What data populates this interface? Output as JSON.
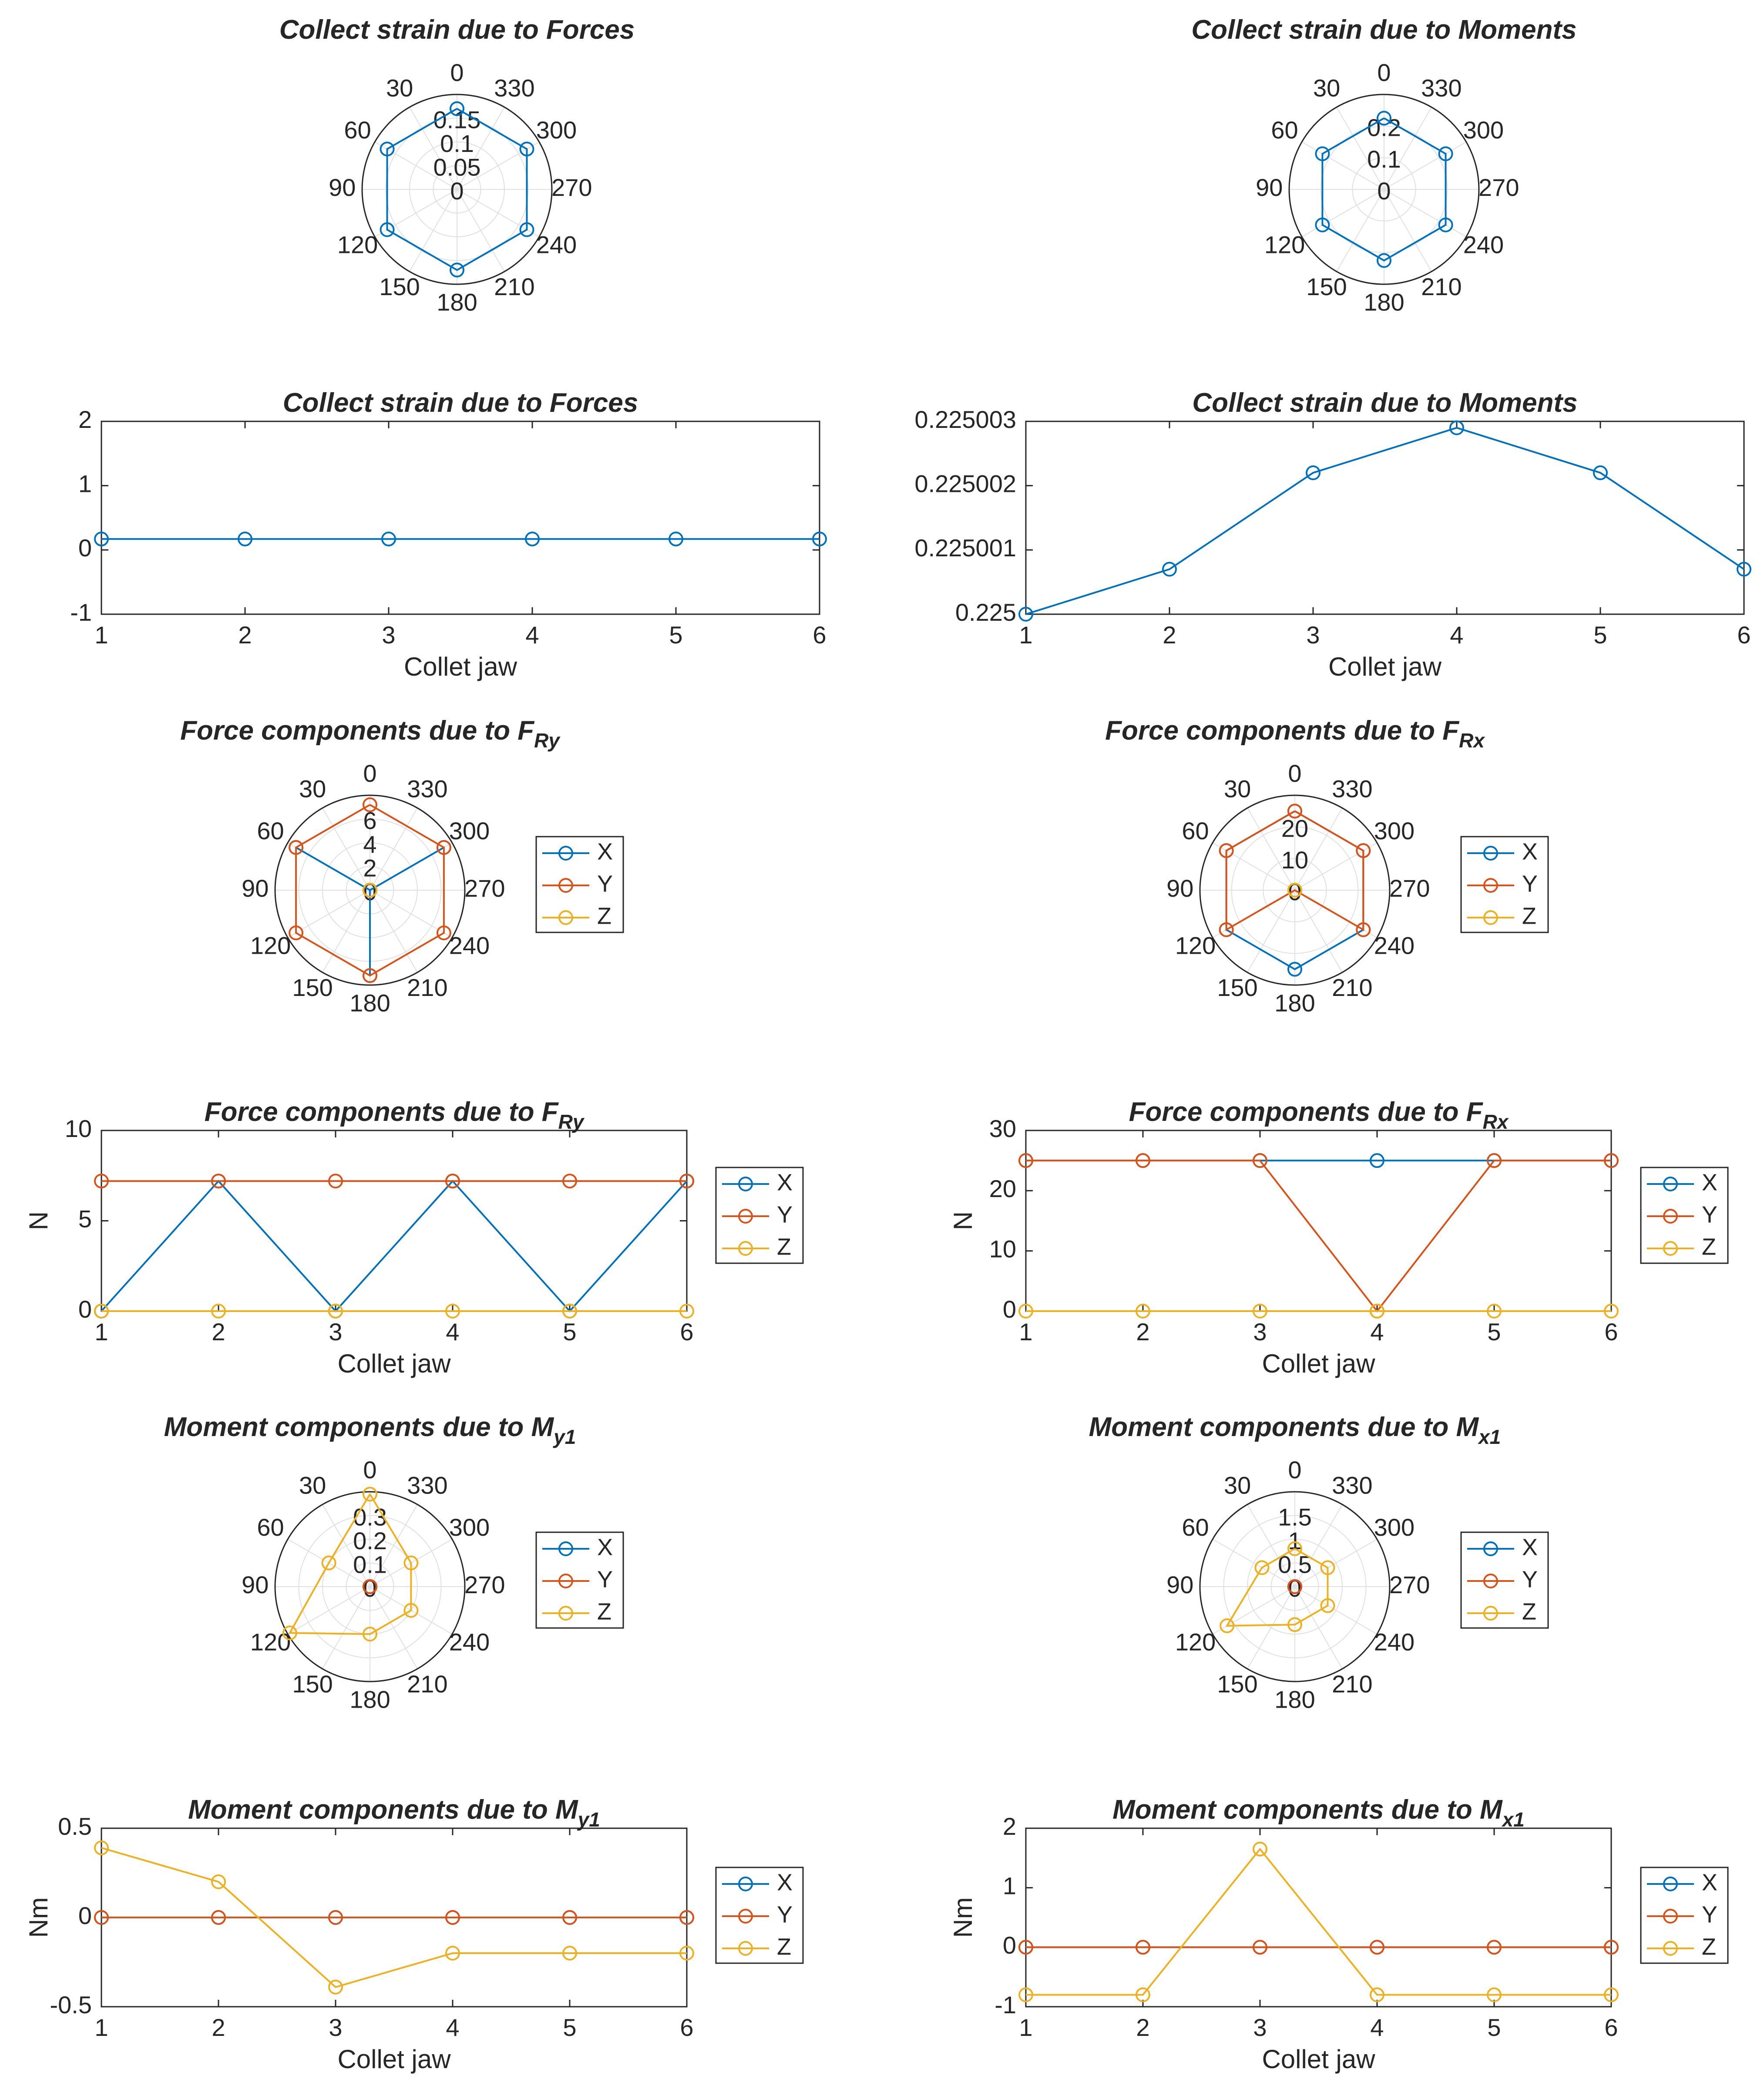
{
  "colors": {
    "X": "#0072BD",
    "Y": "#D95319",
    "Z": "#EDB120",
    "axis": "#262626",
    "grid": "#e0e0e0"
  },
  "legend_labels": [
    "X",
    "Y",
    "Z"
  ],
  "chart_data": [
    {
      "id": "strain-forces-polar",
      "type": "polar-line",
      "title": "Collect strain due to Forces",
      "theta": [
        0,
        60,
        120,
        180,
        240,
        300
      ],
      "rlim": [
        0,
        0.2
      ],
      "rticks": [
        "0",
        "0.05",
        "0.1",
        "0.15"
      ],
      "theta_ticks": [
        "0",
        "30",
        "60",
        "90",
        "120",
        "150",
        "180",
        "210",
        "240",
        "270",
        "300",
        "330"
      ],
      "series": [
        {
          "color": "X",
          "values": [
            0.17,
            0.17,
            0.17,
            0.17,
            0.17,
            0.17
          ]
        }
      ],
      "legend": false
    },
    {
      "id": "strain-moments-polar",
      "type": "polar-line",
      "title": "Collect strain due to Moments",
      "theta": [
        0,
        60,
        120,
        180,
        240,
        300
      ],
      "rlim": [
        0,
        0.3
      ],
      "rticks": [
        "0",
        "0.1",
        "0.2"
      ],
      "theta_ticks": [
        "0",
        "30",
        "60",
        "90",
        "120",
        "150",
        "180",
        "210",
        "240",
        "270",
        "300",
        "330"
      ],
      "series": [
        {
          "color": "X",
          "values": [
            0.225,
            0.225,
            0.225,
            0.225,
            0.225,
            0.225
          ]
        }
      ],
      "legend": false
    },
    {
      "id": "strain-forces-line",
      "type": "line",
      "title": "Collect strain due to Forces",
      "xlabel": "Collet jaw",
      "ylabel": "",
      "x": [
        1,
        2,
        3,
        4,
        5,
        6
      ],
      "xlim": [
        1,
        6
      ],
      "ylim": [
        -1,
        2
      ],
      "xticks": [
        "1",
        "2",
        "3",
        "4",
        "5",
        "6"
      ],
      "yticks": [
        "-1",
        "0",
        "1",
        "2"
      ],
      "series": [
        {
          "color": "X",
          "values": [
            0.17,
            0.17,
            0.17,
            0.17,
            0.17,
            0.17
          ]
        }
      ],
      "legend": false
    },
    {
      "id": "strain-moments-line",
      "type": "line",
      "title": "Collect strain due to Moments",
      "xlabel": "Collet jaw",
      "ylabel": "",
      "x": [
        1,
        2,
        3,
        4,
        5,
        6
      ],
      "xlim": [
        1,
        6
      ],
      "ylim": [
        0.225,
        0.225003
      ],
      "xticks": [
        "1",
        "2",
        "3",
        "4",
        "5",
        "6"
      ],
      "yticks": [
        "0.225",
        "0.225001",
        "0.225002",
        "0.225003"
      ],
      "series": [
        {
          "color": "X",
          "values": [
            0.225,
            0.2250007,
            0.2250022,
            0.2250029,
            0.2250022,
            0.2250007
          ]
        }
      ],
      "legend": false
    },
    {
      "id": "force-fry-polar",
      "type": "polar-line",
      "title": "Force components due to F",
      "title_sub": "Ry",
      "theta": [
        0,
        60,
        120,
        180,
        240,
        300
      ],
      "rlim": [
        0,
        8
      ],
      "rticks": [
        "0",
        "2",
        "4",
        "6"
      ],
      "theta_ticks": [
        "0",
        "30",
        "60",
        "90",
        "120",
        "150",
        "180",
        "210",
        "240",
        "270",
        "300",
        "330"
      ],
      "series": [
        {
          "name": "X",
          "color": "X",
          "values": [
            0,
            7.2,
            0,
            7.2,
            0,
            7.2
          ]
        },
        {
          "name": "Y",
          "color": "Y",
          "values": [
            7.2,
            7.2,
            7.2,
            7.2,
            7.2,
            7.2
          ]
        },
        {
          "name": "Z",
          "color": "Z",
          "values": [
            0,
            0,
            0,
            0,
            0,
            0
          ]
        }
      ],
      "legend": true
    },
    {
      "id": "force-frx-polar",
      "type": "polar-line",
      "title": "Force components due to F",
      "title_sub": "Rx",
      "theta": [
        0,
        60,
        120,
        180,
        240,
        300
      ],
      "rlim": [
        0,
        30
      ],
      "rticks": [
        "0",
        "10",
        "20"
      ],
      "theta_ticks": [
        "0",
        "30",
        "60",
        "90",
        "120",
        "150",
        "180",
        "210",
        "240",
        "270",
        "300",
        "330"
      ],
      "series": [
        {
          "name": "X",
          "color": "X",
          "values": [
            25,
            25,
            25,
            25,
            25,
            25
          ]
        },
        {
          "name": "Y",
          "color": "Y",
          "values": [
            25,
            25,
            25,
            0,
            25,
            25
          ]
        },
        {
          "name": "Z",
          "color": "Z",
          "values": [
            0,
            0,
            0,
            0,
            0,
            0
          ]
        }
      ],
      "legend": true
    },
    {
      "id": "force-fry-line",
      "type": "line",
      "title": "Force components due to F",
      "title_sub": "Ry",
      "xlabel": "Collet jaw",
      "ylabel": "N",
      "x": [
        1,
        2,
        3,
        4,
        5,
        6
      ],
      "xlim": [
        1,
        6
      ],
      "ylim": [
        0,
        10
      ],
      "xticks": [
        "1",
        "2",
        "3",
        "4",
        "5",
        "6"
      ],
      "yticks": [
        "0",
        "5",
        "10"
      ],
      "series": [
        {
          "name": "X",
          "color": "X",
          "values": [
            0,
            7.2,
            0,
            7.2,
            0,
            7.2
          ]
        },
        {
          "name": "Y",
          "color": "Y",
          "values": [
            7.2,
            7.2,
            7.2,
            7.2,
            7.2,
            7.2
          ]
        },
        {
          "name": "Z",
          "color": "Z",
          "values": [
            0,
            0,
            0,
            0,
            0,
            0
          ]
        }
      ],
      "legend": true
    },
    {
      "id": "force-frx-line",
      "type": "line",
      "title": "Force components due to F",
      "title_sub": "Rx",
      "xlabel": "Collet jaw",
      "ylabel": "N",
      "x": [
        1,
        2,
        3,
        4,
        5,
        6
      ],
      "xlim": [
        1,
        6
      ],
      "ylim": [
        0,
        30
      ],
      "xticks": [
        "1",
        "2",
        "3",
        "4",
        "5",
        "6"
      ],
      "yticks": [
        "0",
        "10",
        "20",
        "30"
      ],
      "series": [
        {
          "name": "X",
          "color": "X",
          "values": [
            25,
            25,
            25,
            25,
            25,
            25
          ]
        },
        {
          "name": "Y",
          "color": "Y",
          "values": [
            25,
            25,
            25,
            0,
            25,
            25
          ]
        },
        {
          "name": "Z",
          "color": "Z",
          "values": [
            0,
            0,
            0,
            0,
            0,
            0
          ]
        }
      ],
      "legend": true
    },
    {
      "id": "moment-my1-polar",
      "type": "polar-line",
      "title": "Moment components due to M",
      "title_sub": "y1",
      "theta": [
        0,
        60,
        120,
        180,
        240,
        300
      ],
      "rlim": [
        0,
        0.4
      ],
      "rticks": [
        "0",
        "0.1",
        "0.2",
        "0.3"
      ],
      "theta_ticks": [
        "0",
        "30",
        "60",
        "90",
        "120",
        "150",
        "180",
        "210",
        "240",
        "270",
        "300",
        "330"
      ],
      "series": [
        {
          "name": "X",
          "color": "X",
          "values": [
            0,
            0,
            0,
            0,
            0,
            0
          ]
        },
        {
          "name": "Y",
          "color": "Y",
          "values": [
            0,
            0,
            0,
            0,
            0,
            0
          ]
        },
        {
          "name": "Z",
          "color": "Z",
          "values": [
            0.39,
            0.2,
            0.39,
            0.2,
            0.2,
            0.2
          ]
        }
      ],
      "legend": true
    },
    {
      "id": "moment-mx1-polar",
      "type": "polar-line",
      "title": "Moment components due to M",
      "title_sub": "x1",
      "theta": [
        0,
        60,
        120,
        180,
        240,
        300
      ],
      "rlim": [
        0,
        2
      ],
      "rticks": [
        "0",
        "0.5",
        "1",
        "1.5"
      ],
      "theta_ticks": [
        "0",
        "30",
        "60",
        "90",
        "120",
        "150",
        "180",
        "210",
        "240",
        "270",
        "300",
        "330"
      ],
      "series": [
        {
          "name": "X",
          "color": "X",
          "values": [
            0,
            0,
            0,
            0,
            0,
            0
          ]
        },
        {
          "name": "Y",
          "color": "Y",
          "values": [
            0,
            0,
            0,
            0,
            0,
            0
          ]
        },
        {
          "name": "Z",
          "color": "Z",
          "values": [
            0.8,
            0.8,
            1.65,
            0.8,
            0.8,
            0.8
          ]
        }
      ],
      "legend": true
    },
    {
      "id": "moment-my1-line",
      "type": "line",
      "title": "Moment components due to M",
      "title_sub": "y1",
      "xlabel": "Collet jaw",
      "ylabel": "Nm",
      "x": [
        1,
        2,
        3,
        4,
        5,
        6
      ],
      "xlim": [
        1,
        6
      ],
      "ylim": [
        -0.5,
        0.5
      ],
      "xticks": [
        "1",
        "2",
        "3",
        "4",
        "5",
        "6"
      ],
      "yticks": [
        "-0.5",
        "0",
        "0.5"
      ],
      "series": [
        {
          "name": "X",
          "color": "X",
          "values": [
            0,
            0,
            0,
            0,
            0,
            0
          ]
        },
        {
          "name": "Y",
          "color": "Y",
          "values": [
            0,
            0,
            0,
            0,
            0,
            0
          ]
        },
        {
          "name": "Z",
          "color": "Z",
          "values": [
            0.39,
            0.2,
            -0.39,
            -0.2,
            -0.2,
            -0.2
          ]
        }
      ],
      "legend": true
    },
    {
      "id": "moment-mx1-line",
      "type": "line",
      "title": "Moment components due to M",
      "title_sub": "x1",
      "xlabel": "Collet jaw",
      "ylabel": "Nm",
      "x": [
        1,
        2,
        3,
        4,
        5,
        6
      ],
      "xlim": [
        1,
        6
      ],
      "ylim": [
        -1,
        2
      ],
      "xticks": [
        "1",
        "2",
        "3",
        "4",
        "5",
        "6"
      ],
      "yticks": [
        "-1",
        "0",
        "1",
        "2"
      ],
      "series": [
        {
          "name": "X",
          "color": "X",
          "values": [
            0,
            0,
            0,
            0,
            0,
            0
          ]
        },
        {
          "name": "Y",
          "color": "Y",
          "values": [
            0,
            0,
            0,
            0,
            0,
            0
          ]
        },
        {
          "name": "Z",
          "color": "Z",
          "values": [
            -0.8,
            -0.8,
            1.65,
            -0.8,
            -0.8,
            -0.8
          ]
        }
      ],
      "legend": true
    }
  ]
}
